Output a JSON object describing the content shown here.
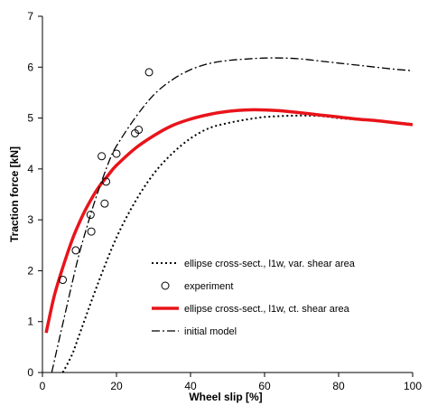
{
  "chart_data": {
    "type": "line",
    "xlabel": "Wheel slip [%]",
    "ylabel": "Traction force [kN]",
    "xlim": [
      0,
      100
    ],
    "ylim": [
      0,
      7
    ],
    "xticks": [
      "0",
      "20",
      "40",
      "60",
      "80",
      "100"
    ],
    "yticks": [
      "0",
      "1",
      "2",
      "3",
      "4",
      "5",
      "6",
      "7"
    ],
    "grid": false,
    "legend_position": "lower-right",
    "series": [
      {
        "name": "ellipse cross-sect., l1w, var. shear area",
        "style": "dotted",
        "color": "#000000",
        "points": [
          [
            5.5,
            0
          ],
          [
            8,
            0.35
          ],
          [
            10,
            0.75
          ],
          [
            15,
            1.75
          ],
          [
            20,
            2.65
          ],
          [
            25,
            3.35
          ],
          [
            30,
            3.9
          ],
          [
            35,
            4.3
          ],
          [
            40,
            4.6
          ],
          [
            45,
            4.8
          ],
          [
            50,
            4.9
          ],
          [
            55,
            4.97
          ],
          [
            60,
            5.02
          ],
          [
            65,
            5.04
          ],
          [
            70,
            5.05
          ],
          [
            75,
            5.04
          ],
          [
            80,
            5.0
          ],
          [
            85,
            4.97
          ],
          [
            90,
            4.95
          ],
          [
            95,
            4.92
          ],
          [
            100,
            4.88
          ]
        ]
      },
      {
        "name": "experiment",
        "style": "markers",
        "color": "#000000",
        "points": [
          [
            5.5,
            1.82
          ],
          [
            9,
            2.4
          ],
          [
            13,
            3.1
          ],
          [
            13.2,
            2.77
          ],
          [
            16,
            4.25
          ],
          [
            16.8,
            3.32
          ],
          [
            17.2,
            3.75
          ],
          [
            20,
            4.3
          ],
          [
            25,
            4.7
          ],
          [
            26,
            4.77
          ],
          [
            28.8,
            5.9
          ]
        ]
      },
      {
        "name": "ellipse cross-sect., l1w, ct. shear area",
        "style": "solid",
        "color": "#e8141a",
        "points": [
          [
            1,
            0.78
          ],
          [
            3,
            1.45
          ],
          [
            5,
            1.95
          ],
          [
            8,
            2.6
          ],
          [
            10,
            2.95
          ],
          [
            12,
            3.25
          ],
          [
            15,
            3.62
          ],
          [
            18,
            3.9
          ],
          [
            20,
            4.07
          ],
          [
            25,
            4.4
          ],
          [
            30,
            4.65
          ],
          [
            35,
            4.85
          ],
          [
            40,
            4.98
          ],
          [
            45,
            5.07
          ],
          [
            50,
            5.13
          ],
          [
            55,
            5.16
          ],
          [
            60,
            5.16
          ],
          [
            65,
            5.14
          ],
          [
            70,
            5.1
          ],
          [
            75,
            5.06
          ],
          [
            80,
            5.02
          ],
          [
            85,
            4.98
          ],
          [
            90,
            4.95
          ],
          [
            95,
            4.91
          ],
          [
            100,
            4.87
          ]
        ]
      },
      {
        "name": "initial model",
        "style": "dashdot",
        "color": "#000000",
        "points": [
          [
            2.5,
            0
          ],
          [
            5,
            0.8
          ],
          [
            8,
            1.75
          ],
          [
            10,
            2.35
          ],
          [
            13,
            3.1
          ],
          [
            15,
            3.55
          ],
          [
            18,
            4.15
          ],
          [
            20,
            4.45
          ],
          [
            25,
            5.0
          ],
          [
            30,
            5.45
          ],
          [
            35,
            5.75
          ],
          [
            40,
            5.95
          ],
          [
            45,
            6.07
          ],
          [
            50,
            6.13
          ],
          [
            55,
            6.16
          ],
          [
            60,
            6.18
          ],
          [
            65,
            6.18
          ],
          [
            70,
            6.16
          ],
          [
            75,
            6.12
          ],
          [
            80,
            6.08
          ],
          [
            85,
            6.04
          ],
          [
            90,
            6.0
          ],
          [
            95,
            5.96
          ],
          [
            100,
            5.93
          ]
        ]
      }
    ]
  }
}
